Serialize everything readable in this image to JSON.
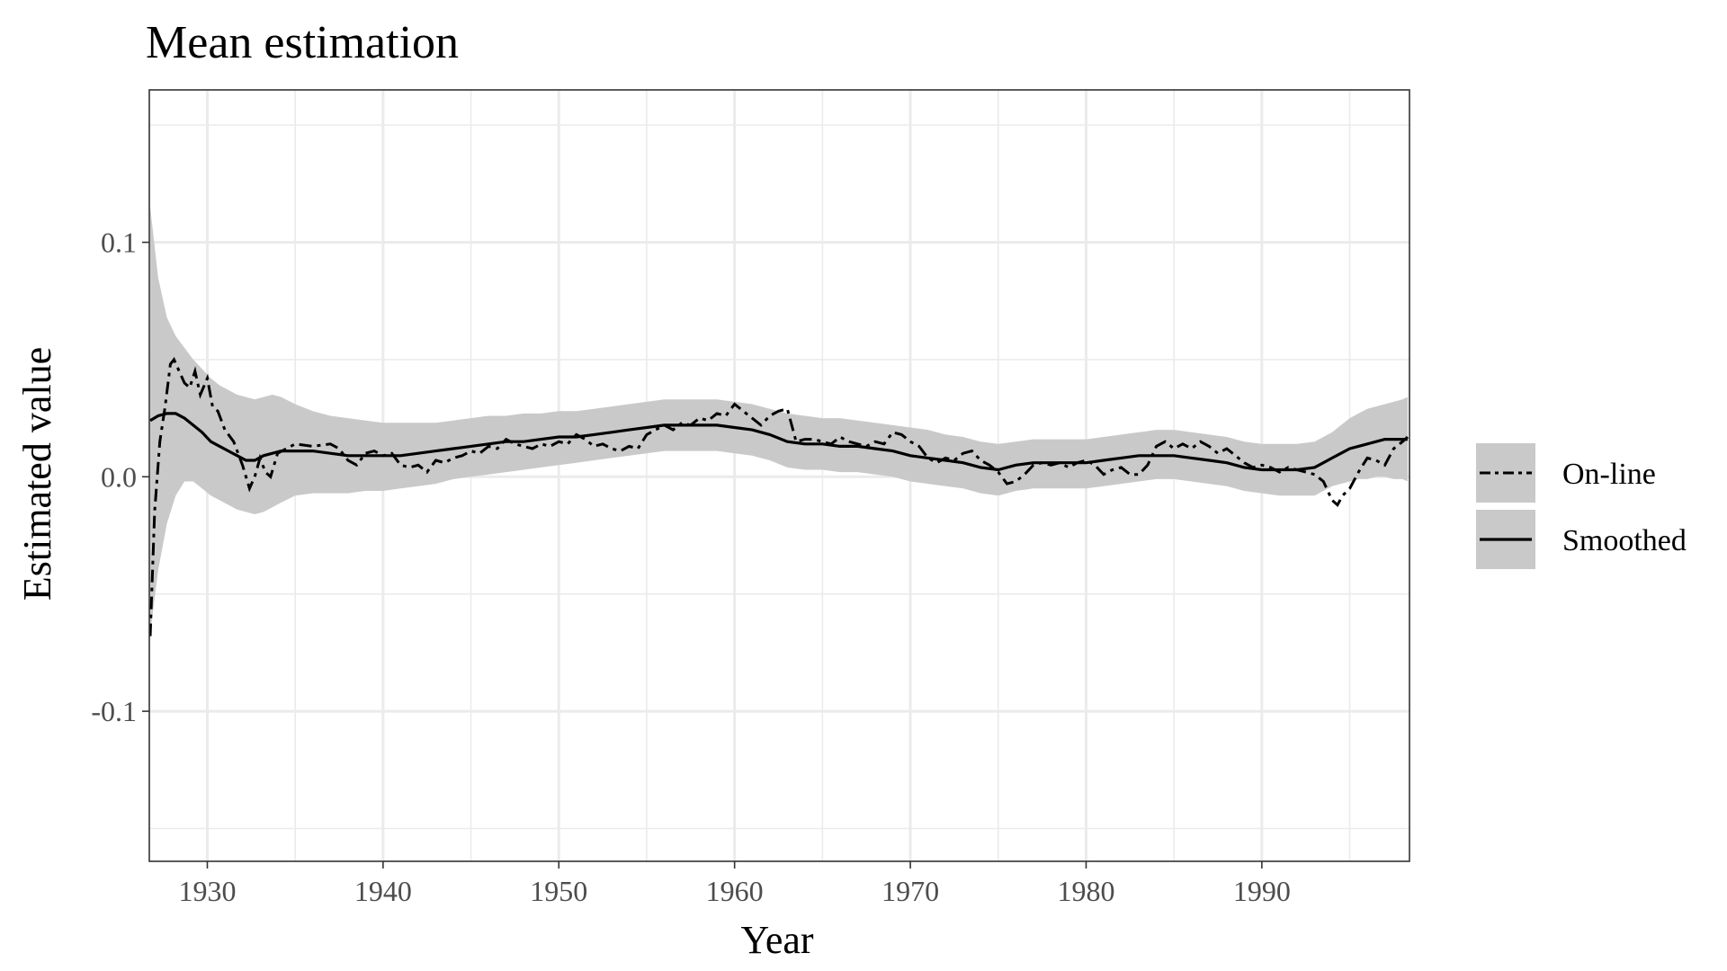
{
  "chart_data": {
    "type": "line",
    "title": "Mean estimation",
    "xlabel": "Year",
    "ylabel": "Estimated value",
    "xlim": [
      1926.7,
      1998.4
    ],
    "ylim": [
      -0.164,
      0.165
    ],
    "x_ticks": [
      1930,
      1940,
      1950,
      1960,
      1970,
      1980,
      1990
    ],
    "x_tick_labels": [
      "1930",
      "1940",
      "1950",
      "1960",
      "1970",
      "1980",
      "1990"
    ],
    "y_ticks": [
      -0.1,
      0.0,
      0.1
    ],
    "y_tick_labels": [
      "-0.1",
      "0.0",
      "0.1"
    ],
    "grid": true,
    "legend_position": "right",
    "colors": {
      "band": "#c9c9c9",
      "line": "#000000",
      "grid": "#ebebeb",
      "panel_border": "#333333"
    },
    "series": [
      {
        "name": "On-line",
        "style": "dashed",
        "x": [
          1926.75,
          1927.0,
          1927.3,
          1927.6,
          1927.9,
          1928.1,
          1928.4,
          1928.7,
          1929.0,
          1929.3,
          1929.6,
          1930.0,
          1930.3,
          1930.6,
          1931.0,
          1931.5,
          1932.0,
          1932.4,
          1932.7,
          1933.0,
          1933.3,
          1933.6,
          1934.0,
          1934.5,
          1935.0,
          1936.0,
          1937.0,
          1937.5,
          1938.0,
          1938.5,
          1939.0,
          1939.5,
          1940.0,
          1940.5,
          1941.0,
          1941.5,
          1942.0,
          1942.5,
          1943.0,
          1943.5,
          1944.0,
          1944.5,
          1945.0,
          1945.5,
          1946.0,
          1946.5,
          1947.0,
          1947.5,
          1948.0,
          1948.5,
          1949.0,
          1949.5,
          1950.0,
          1950.5,
          1951.0,
          1951.5,
          1952.0,
          1952.5,
          1953.0,
          1953.5,
          1954.0,
          1954.5,
          1955.0,
          1955.5,
          1956.0,
          1956.5,
          1957.0,
          1957.5,
          1958.0,
          1958.5,
          1959.0,
          1959.5,
          1960.0,
          1960.5,
          1961.0,
          1961.5,
          1962.0,
          1962.5,
          1963.0,
          1963.5,
          1964.0,
          1964.5,
          1965.0,
          1965.5,
          1966.0,
          1966.5,
          1967.0,
          1967.5,
          1968.0,
          1968.5,
          1969.0,
          1969.5,
          1970.0,
          1970.5,
          1971.0,
          1971.5,
          1972.0,
          1972.5,
          1973.0,
          1973.5,
          1974.0,
          1974.5,
          1975.0,
          1975.5,
          1976.0,
          1976.5,
          1977.0,
          1977.5,
          1978.0,
          1978.5,
          1979.0,
          1979.5,
          1980.0,
          1980.5,
          1981.0,
          1981.5,
          1982.0,
          1982.5,
          1983.0,
          1983.5,
          1984.0,
          1984.5,
          1985.0,
          1985.5,
          1986.0,
          1986.5,
          1987.0,
          1987.5,
          1988.0,
          1988.5,
          1989.0,
          1989.5,
          1990.0,
          1990.5,
          1991.0,
          1991.5,
          1992.0,
          1992.5,
          1993.0,
          1993.5,
          1994.0,
          1994.3,
          1994.6,
          1995.0,
          1995.5,
          1996.0,
          1996.5,
          1997.0,
          1997.5,
          1998.0,
          1998.3
        ],
        "values": [
          -0.068,
          -0.015,
          0.015,
          0.03,
          0.048,
          0.05,
          0.045,
          0.04,
          0.038,
          0.045,
          0.035,
          0.042,
          0.03,
          0.028,
          0.02,
          0.015,
          0.005,
          -0.005,
          0.0,
          0.008,
          0.002,
          0.0,
          0.01,
          0.012,
          0.014,
          0.013,
          0.014,
          0.012,
          0.007,
          0.005,
          0.01,
          0.011,
          0.009,
          0.01,
          0.005,
          0.004,
          0.005,
          0.002,
          0.007,
          0.006,
          0.008,
          0.009,
          0.011,
          0.01,
          0.013,
          0.012,
          0.016,
          0.014,
          0.013,
          0.012,
          0.014,
          0.013,
          0.015,
          0.014,
          0.018,
          0.016,
          0.013,
          0.014,
          0.012,
          0.011,
          0.013,
          0.012,
          0.018,
          0.02,
          0.022,
          0.02,
          0.023,
          0.022,
          0.025,
          0.024,
          0.027,
          0.026,
          0.031,
          0.028,
          0.025,
          0.022,
          0.026,
          0.028,
          0.029,
          0.015,
          0.016,
          0.016,
          0.015,
          0.014,
          0.017,
          0.015,
          0.014,
          0.013,
          0.015,
          0.014,
          0.019,
          0.018,
          0.015,
          0.013,
          0.008,
          0.006,
          0.008,
          0.007,
          0.01,
          0.011,
          0.007,
          0.005,
          0.002,
          -0.003,
          -0.002,
          0.001,
          0.005,
          0.006,
          0.005,
          0.006,
          0.004,
          0.006,
          0.007,
          0.005,
          0.001,
          0.003,
          0.004,
          0.001,
          0.001,
          0.005,
          0.013,
          0.015,
          0.012,
          0.014,
          0.012,
          0.015,
          0.013,
          0.01,
          0.012,
          0.009,
          0.006,
          0.004,
          0.005,
          0.004,
          0.002,
          0.004,
          0.003,
          0.002,
          0.001,
          -0.002,
          -0.01,
          -0.012,
          -0.008,
          -0.005,
          0.002,
          0.008,
          0.007,
          0.005,
          0.012,
          0.015,
          0.017
        ]
      },
      {
        "name": "Smoothed",
        "style": "solid",
        "x": [
          1926.75,
          1927.2,
          1927.7,
          1928.2,
          1928.7,
          1929.2,
          1929.7,
          1930.2,
          1930.7,
          1931.2,
          1931.7,
          1932.2,
          1932.7,
          1933.2,
          1933.7,
          1934.2,
          1935.0,
          1936.0,
          1937.0,
          1938.0,
          1939.0,
          1940.0,
          1941.0,
          1942.0,
          1943.0,
          1944.0,
          1945.0,
          1946.0,
          1947.0,
          1948.0,
          1949.0,
          1950.0,
          1951.0,
          1952.0,
          1953.0,
          1954.0,
          1955.0,
          1956.0,
          1957.0,
          1958.0,
          1959.0,
          1960.0,
          1961.0,
          1962.0,
          1963.0,
          1964.0,
          1965.0,
          1966.0,
          1967.0,
          1968.0,
          1969.0,
          1970.0,
          1971.0,
          1972.0,
          1973.0,
          1974.0,
          1975.0,
          1976.0,
          1977.0,
          1978.0,
          1979.0,
          1980.0,
          1981.0,
          1982.0,
          1983.0,
          1984.0,
          1985.0,
          1986.0,
          1987.0,
          1988.0,
          1989.0,
          1990.0,
          1991.0,
          1992.0,
          1993.0,
          1993.5,
          1994.0,
          1994.5,
          1995.0,
          1995.5,
          1996.0,
          1996.5,
          1997.0,
          1997.5,
          1998.0,
          1998.3
        ],
        "values": [
          0.024,
          0.026,
          0.027,
          0.027,
          0.025,
          0.022,
          0.019,
          0.015,
          0.013,
          0.011,
          0.009,
          0.007,
          0.007,
          0.009,
          0.01,
          0.011,
          0.011,
          0.011,
          0.01,
          0.009,
          0.009,
          0.009,
          0.009,
          0.01,
          0.011,
          0.012,
          0.013,
          0.014,
          0.015,
          0.015,
          0.016,
          0.017,
          0.017,
          0.018,
          0.019,
          0.02,
          0.021,
          0.022,
          0.022,
          0.022,
          0.022,
          0.021,
          0.02,
          0.018,
          0.015,
          0.014,
          0.014,
          0.013,
          0.013,
          0.012,
          0.011,
          0.009,
          0.008,
          0.007,
          0.006,
          0.004,
          0.003,
          0.005,
          0.006,
          0.006,
          0.006,
          0.006,
          0.007,
          0.008,
          0.009,
          0.009,
          0.009,
          0.008,
          0.007,
          0.006,
          0.004,
          0.003,
          0.003,
          0.003,
          0.004,
          0.006,
          0.008,
          0.01,
          0.012,
          0.013,
          0.014,
          0.015,
          0.016,
          0.016,
          0.016,
          0.016
        ]
      }
    ],
    "band": {
      "x": [
        1926.75,
        1927.2,
        1927.7,
        1928.2,
        1928.7,
        1929.2,
        1929.7,
        1930.2,
        1930.7,
        1931.2,
        1931.7,
        1932.2,
        1932.7,
        1933.2,
        1933.7,
        1934.2,
        1935.0,
        1936.0,
        1937.0,
        1938.0,
        1939.0,
        1940.0,
        1941.0,
        1942.0,
        1943.0,
        1944.0,
        1945.0,
        1946.0,
        1947.0,
        1948.0,
        1949.0,
        1950.0,
        1951.0,
        1952.0,
        1953.0,
        1954.0,
        1955.0,
        1956.0,
        1957.0,
        1958.0,
        1959.0,
        1960.0,
        1961.0,
        1962.0,
        1963.0,
        1964.0,
        1965.0,
        1966.0,
        1967.0,
        1968.0,
        1969.0,
        1970.0,
        1971.0,
        1972.0,
        1973.0,
        1974.0,
        1975.0,
        1976.0,
        1977.0,
        1978.0,
        1979.0,
        1980.0,
        1981.0,
        1982.0,
        1983.0,
        1984.0,
        1985.0,
        1986.0,
        1987.0,
        1988.0,
        1989.0,
        1990.0,
        1991.0,
        1992.0,
        1993.0,
        1993.5,
        1994.0,
        1994.5,
        1995.0,
        1995.5,
        1996.0,
        1996.5,
        1997.0,
        1997.5,
        1998.0,
        1998.3
      ],
      "upper": [
        0.115,
        0.085,
        0.068,
        0.06,
        0.055,
        0.05,
        0.046,
        0.042,
        0.039,
        0.037,
        0.035,
        0.034,
        0.033,
        0.034,
        0.035,
        0.034,
        0.031,
        0.028,
        0.026,
        0.025,
        0.024,
        0.023,
        0.023,
        0.023,
        0.023,
        0.024,
        0.025,
        0.026,
        0.026,
        0.027,
        0.027,
        0.028,
        0.028,
        0.029,
        0.03,
        0.031,
        0.032,
        0.033,
        0.033,
        0.033,
        0.033,
        0.032,
        0.031,
        0.029,
        0.027,
        0.026,
        0.025,
        0.025,
        0.024,
        0.023,
        0.022,
        0.021,
        0.02,
        0.018,
        0.017,
        0.015,
        0.014,
        0.015,
        0.016,
        0.016,
        0.016,
        0.016,
        0.017,
        0.018,
        0.019,
        0.02,
        0.02,
        0.019,
        0.018,
        0.017,
        0.015,
        0.014,
        0.014,
        0.014,
        0.015,
        0.017,
        0.019,
        0.022,
        0.025,
        0.027,
        0.029,
        0.03,
        0.031,
        0.032,
        0.033,
        0.034
      ],
      "lower": [
        -0.067,
        -0.04,
        -0.02,
        -0.008,
        -0.002,
        -0.002,
        -0.005,
        -0.008,
        -0.01,
        -0.012,
        -0.014,
        -0.015,
        -0.016,
        -0.015,
        -0.013,
        -0.011,
        -0.008,
        -0.007,
        -0.007,
        -0.007,
        -0.006,
        -0.006,
        -0.005,
        -0.004,
        -0.003,
        -0.001,
        0.0,
        0.001,
        0.002,
        0.003,
        0.004,
        0.005,
        0.006,
        0.007,
        0.008,
        0.009,
        0.01,
        0.011,
        0.011,
        0.011,
        0.011,
        0.01,
        0.009,
        0.007,
        0.004,
        0.003,
        0.003,
        0.002,
        0.002,
        0.001,
        0.0,
        -0.002,
        -0.003,
        -0.004,
        -0.005,
        -0.007,
        -0.008,
        -0.006,
        -0.005,
        -0.005,
        -0.005,
        -0.005,
        -0.004,
        -0.003,
        -0.002,
        -0.001,
        -0.001,
        -0.002,
        -0.003,
        -0.004,
        -0.006,
        -0.007,
        -0.008,
        -0.008,
        -0.008,
        -0.006,
        -0.004,
        -0.003,
        -0.002,
        -0.001,
        -0.001,
        0.0,
        0.0,
        -0.001,
        -0.001,
        -0.002
      ]
    },
    "legend": [
      {
        "label": "On-line",
        "style": "dashed"
      },
      {
        "label": "Smoothed",
        "style": "solid"
      }
    ]
  }
}
